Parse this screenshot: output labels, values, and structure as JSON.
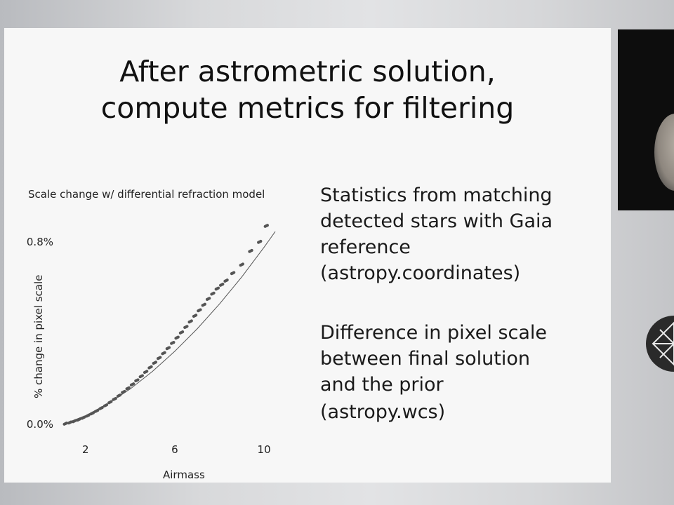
{
  "slide": {
    "title": "After astrometric solution,\ncompute metrics for filtering",
    "bullets": [
      "Statistics from matching\ndetected stars with Gaia\nreference\n(astropy.coordinates)",
      "Difference in pixel scale\nbetween final solution\nand the prior"
    ],
    "bullet_2_sub": "(astropy.wcs)"
  },
  "chart_data": {
    "type": "scatter",
    "title": "Scale change w/ differential refraction model",
    "xlabel": "Airmass",
    "ylabel": "% change in pixel scale",
    "x_ticks": [
      2,
      6,
      10
    ],
    "y_ticks": [
      "0.0%",
      "0.8%"
    ],
    "xlim": [
      1.0,
      10.5
    ],
    "ylim": [
      0.0,
      0.95
    ],
    "series": [
      {
        "kind": "points",
        "x": [
          1.1,
          1.3,
          1.5,
          1.7,
          1.9,
          2.1,
          2.3,
          2.5,
          2.7,
          2.9,
          3.1,
          3.3,
          3.5,
          3.7,
          3.9,
          4.1,
          4.3,
          4.5,
          4.7,
          4.9,
          5.1,
          5.3,
          5.5,
          5.7,
          5.9,
          6.1,
          6.3,
          6.5,
          6.7,
          6.9,
          7.1,
          7.3,
          7.5,
          7.7,
          7.9,
          8.1,
          8.3,
          8.6,
          9.0,
          9.4,
          9.8,
          10.1
        ],
        "y": [
          0.003,
          0.008,
          0.014,
          0.021,
          0.029,
          0.038,
          0.048,
          0.059,
          0.071,
          0.083,
          0.097,
          0.111,
          0.126,
          0.142,
          0.158,
          0.175,
          0.193,
          0.211,
          0.23,
          0.25,
          0.27,
          0.291,
          0.312,
          0.334,
          0.357,
          0.38,
          0.403,
          0.427,
          0.451,
          0.476,
          0.5,
          0.524,
          0.55,
          0.573,
          0.595,
          0.612,
          0.63,
          0.663,
          0.7,
          0.76,
          0.8,
          0.87
        ]
      },
      {
        "kind": "model-line",
        "x": [
          1.0,
          2.0,
          3.0,
          4.0,
          5.0,
          6.0,
          7.0,
          8.0,
          9.0,
          10.0,
          10.5
        ],
        "y": [
          0.0,
          0.038,
          0.09,
          0.155,
          0.232,
          0.32,
          0.418,
          0.527,
          0.646,
          0.776,
          0.845
        ]
      }
    ],
    "grid": false,
    "colors": {
      "points": "#555555",
      "line": "#555555",
      "text": "#222222"
    }
  }
}
